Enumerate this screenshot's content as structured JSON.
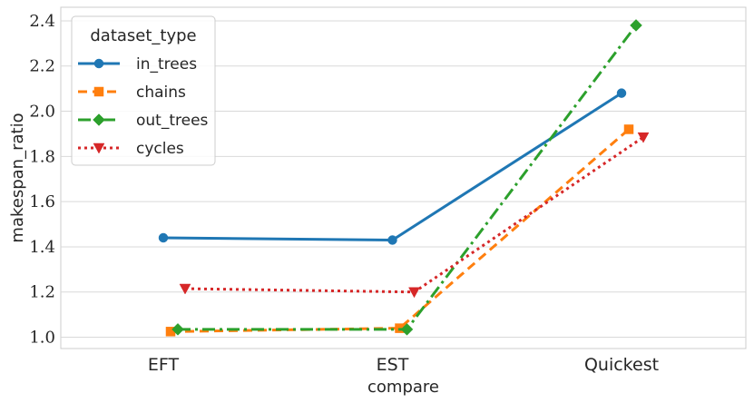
{
  "chart_data": {
    "type": "line",
    "categories": [
      "EFT",
      "EST",
      "Quickest"
    ],
    "xlabel": "compare",
    "ylabel": "makespan_ratio",
    "ylim": [
      0.95,
      2.46
    ],
    "yticks": [
      1.0,
      1.2,
      1.4,
      1.6,
      1.8,
      2.0,
      2.2,
      2.4
    ],
    "ytick_labels": [
      "1.0",
      "1.2",
      "1.4",
      "1.6",
      "1.8",
      "2.0",
      "2.2",
      "2.4"
    ],
    "grid": true,
    "legend": {
      "title": "dataset_type",
      "placement": "top-left"
    },
    "series": [
      {
        "name": "in_trees",
        "values": [
          1.44,
          1.43,
          2.08
        ],
        "color": "#1f77b4",
        "marker": "circle",
        "dash": "solid"
      },
      {
        "name": "chains",
        "values": [
          1.025,
          1.04,
          1.92
        ],
        "color": "#ff7f0e",
        "marker": "square",
        "dash": "dashed"
      },
      {
        "name": "out_trees",
        "values": [
          1.035,
          1.035,
          2.38
        ],
        "color": "#2ca02c",
        "marker": "diamond",
        "dash": "dashdot"
      },
      {
        "name": "cycles",
        "values": [
          1.215,
          1.2,
          1.885
        ],
        "color": "#d62728",
        "marker": "triangle-down",
        "dash": "dotted"
      }
    ]
  }
}
